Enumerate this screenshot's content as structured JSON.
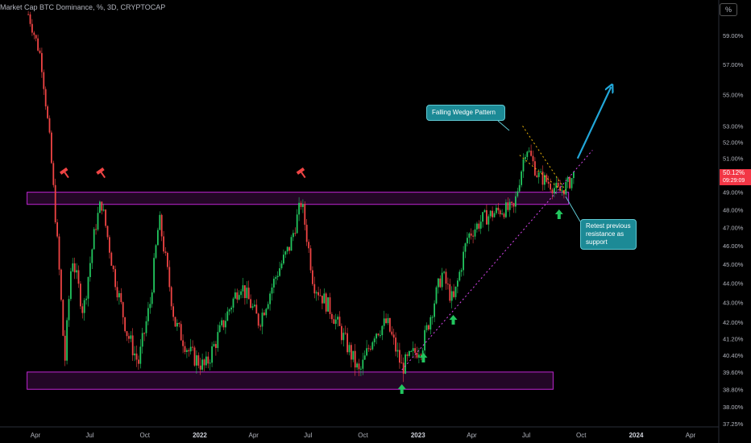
{
  "header": {
    "title": "Market Cap BTC Dominance, %, 3D, CRYPTOCAP",
    "scale_toggle": "%"
  },
  "price_tag": {
    "value": "50.12%",
    "timer": "09:29:09"
  },
  "annotations": {
    "wedge_label": "Falling Wedge Pattern",
    "retest_label": "Retest previous resistance as support"
  },
  "colors": {
    "up_candle": "#22c55e",
    "down_candle": "#ef4444",
    "zone": "#c026d3",
    "arrow_green": "#22c55e",
    "arrow_blue": "#22a7d9",
    "hammer": "#ef4444",
    "callout_bg": "#1c8a96"
  },
  "icons": [
    "hammer-icon",
    "green-up-arrow-icon",
    "blue-arrow-icon"
  ],
  "chart_data": {
    "type": "candlestick",
    "title": "Market Cap BTC Dominance, %, 3D, CRYPTOCAP",
    "y_axis_ticks": [
      "59.00%",
      "57.00%",
      "55.00%",
      "53.00%",
      "52.00%",
      "51.00%",
      "50.12%",
      "49.00%",
      "48.00%",
      "47.00%",
      "46.00%",
      "45.00%",
      "44.00%",
      "43.00%",
      "42.00%",
      "41.20%",
      "40.40%",
      "39.60%",
      "38.80%",
      "38.00%",
      "37.25%"
    ],
    "x_axis_ticks": [
      "Apr",
      "Jul",
      "Oct",
      "2022",
      "Apr",
      "Jul",
      "Oct",
      "2023",
      "Apr",
      "Jul",
      "Oct",
      "2024",
      "Apr"
    ],
    "scale": "log",
    "ylim": [
      37.25,
      60.5
    ],
    "current_value": 50.12,
    "zones": [
      {
        "name": "resistance",
        "low": 48.3,
        "high": 49.0
      },
      {
        "name": "support",
        "low": 38.8,
        "high": 39.6
      }
    ],
    "price_path": [
      [
        "2021-03-20",
        60.5
      ],
      [
        "2021-04-10",
        57.5
      ],
      [
        "2021-04-25",
        52.0
      ],
      [
        "2021-05-10",
        45.0
      ],
      [
        "2021-05-20",
        40.0
      ],
      [
        "2021-06-01",
        45.5
      ],
      [
        "2021-06-20",
        42.5
      ],
      [
        "2021-07-10",
        47.0
      ],
      [
        "2021-07-20",
        48.5
      ],
      [
        "2021-08-10",
        44.5
      ],
      [
        "2021-09-01",
        41.5
      ],
      [
        "2021-09-20",
        40.0
      ],
      [
        "2021-10-10",
        43.0
      ],
      [
        "2021-10-25",
        47.5
      ],
      [
        "2021-11-20",
        42.0
      ],
      [
        "2021-12-15",
        40.5
      ],
      [
        "2022-01-10",
        39.8
      ],
      [
        "2022-02-10",
        42.0
      ],
      [
        "2022-03-10",
        44.0
      ],
      [
        "2022-04-10",
        42.0
      ],
      [
        "2022-05-10",
        44.5
      ],
      [
        "2022-06-01",
        46.0
      ],
      [
        "2022-06-20",
        48.5
      ],
      [
        "2022-07-10",
        44.0
      ],
      [
        "2022-08-10",
        42.5
      ],
      [
        "2022-09-10",
        40.5
      ],
      [
        "2022-09-25",
        39.5
      ],
      [
        "2022-10-20",
        41.5
      ],
      [
        "2022-11-10",
        42.0
      ],
      [
        "2022-12-05",
        39.8
      ],
      [
        "2023-01-10",
        41.0
      ],
      [
        "2023-02-10",
        44.5
      ],
      [
        "2023-03-01",
        43.0
      ],
      [
        "2023-03-25",
        46.5
      ],
      [
        "2023-04-20",
        47.5
      ],
      [
        "2023-05-20",
        48.0
      ],
      [
        "2023-06-10",
        48.0
      ],
      [
        "2023-07-01",
        51.8
      ],
      [
        "2023-07-20",
        50.0
      ],
      [
        "2023-08-10",
        49.5
      ],
      [
        "2023-08-25",
        49.0
      ],
      [
        "2023-09-10",
        49.5
      ],
      [
        "2023-09-20",
        50.12
      ]
    ],
    "marker_dates": {
      "hammers": [
        "2021-05-20",
        "2021-07-20",
        "2022-06-20"
      ],
      "green_arrows": [
        "2022-12-05",
        "2023-01-10",
        "2023-03-01",
        "2023-08-25"
      ]
    },
    "trendlines": [
      {
        "name": "support-trendline",
        "from": [
          "2022-12-05",
          39.7
        ],
        "to": [
          "2023-10-20",
          51.5
        ]
      },
      {
        "name": "wedge-upper",
        "from": [
          "2023-06-25",
          53.0
        ],
        "to": [
          "2023-09-05",
          49.1
        ]
      },
      {
        "name": "wedge-lower",
        "from": [
          "2023-06-20",
          51.2
        ],
        "to": [
          "2023-09-05",
          48.9
        ]
      }
    ],
    "projection": {
      "from": [
        "2023-09-25",
        51.0
      ],
      "to": [
        "2023-11-20",
        55.5
      ]
    },
    "grid": false,
    "legend": "none"
  }
}
